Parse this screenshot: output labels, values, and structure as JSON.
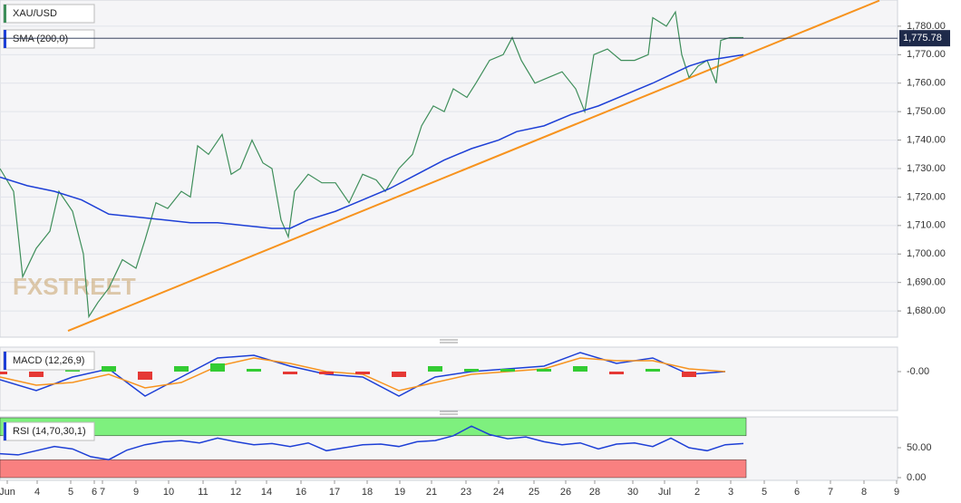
{
  "chart_data": [
    {
      "type": "line",
      "watermark": "FXSTREET",
      "grid": true,
      "xlim": [
        0,
        99
      ],
      "ylim": [
        1670.8,
        1789.2
      ],
      "yticks": [
        {
          "value": 1680,
          "label": "1,680.00"
        },
        {
          "value": 1690,
          "label": "1,690.00"
        },
        {
          "value": 1700,
          "label": "1,700.00"
        },
        {
          "value": 1710,
          "label": "1,710.00"
        },
        {
          "value": 1720,
          "label": "1,720.00"
        },
        {
          "value": 1730,
          "label": "1,730.00"
        },
        {
          "value": 1740,
          "label": "1,740.00"
        },
        {
          "value": 1750,
          "label": "1,750.00"
        },
        {
          "value": 1760,
          "label": "1,760.00"
        },
        {
          "value": 1770,
          "label": "1,770.00"
        },
        {
          "value": 1780,
          "label": "1,780.00"
        }
      ],
      "series": [
        {
          "name": "XAU/USD",
          "color": "#3e8e5a",
          "x": [
            0,
            1.5,
            2.5,
            4,
            5.5,
            6.5,
            8,
            9.2,
            9.8,
            10.8,
            12,
            13.5,
            15,
            16,
            17.2,
            18.5,
            20,
            21,
            21.8,
            23,
            24.5,
            25.5,
            26.5,
            27.8,
            29,
            30,
            31,
            31.8,
            32.5,
            34,
            35.5,
            37,
            38.5,
            40,
            41.5,
            42.5,
            44,
            45.5,
            46.5,
            47.8,
            49,
            50,
            51.5,
            52.5,
            54,
            55.5,
            56.5,
            57.5,
            59,
            60.5,
            62,
            63.5,
            64.5,
            65.5,
            67,
            68.5,
            70,
            71.5,
            72,
            73.5,
            74.5,
            75.2,
            76,
            77,
            78,
            79,
            79.5,
            80.5,
            82
          ],
          "values": [
            1730,
            1722,
            1692,
            1702,
            1708,
            1722,
            1715,
            1700,
            1678,
            1683,
            1688,
            1698,
            1695,
            1705,
            1718,
            1716,
            1722,
            1720,
            1738,
            1735,
            1742,
            1728,
            1730,
            1740,
            1732,
            1730,
            1712,
            1706,
            1722,
            1728,
            1725,
            1725,
            1718,
            1728,
            1726,
            1722,
            1730,
            1735,
            1745,
            1752,
            1750,
            1758,
            1755,
            1760,
            1768,
            1770,
            1776,
            1768,
            1760,
            1762,
            1764,
            1758,
            1750,
            1770,
            1772,
            1768,
            1768,
            1770,
            1783,
            1780,
            1785,
            1770,
            1762,
            1766,
            1768,
            1760,
            1775,
            1776,
            1776
          ]
        },
        {
          "name": "SMA (200,0)",
          "color": "#1d3fd6",
          "x": [
            0,
            3,
            6,
            9,
            12,
            15,
            18,
            21,
            24,
            27,
            30,
            32,
            34,
            37,
            40,
            43,
            46,
            49,
            52,
            55,
            57,
            60,
            63,
            66,
            69,
            72,
            74,
            76,
            78,
            80,
            82
          ],
          "values": [
            1727,
            1724,
            1722,
            1719,
            1714,
            1713,
            1712,
            1711,
            1711,
            1710,
            1709,
            1709,
            1712,
            1715,
            1719,
            1723,
            1728,
            1733,
            1737,
            1740,
            1743,
            1745,
            1749,
            1752,
            1756,
            1760,
            1763,
            1766,
            1768,
            1769,
            1770
          ]
        }
      ],
      "trendline": {
        "color": "#f7931e",
        "x": [
          7.5,
          97
        ],
        "values": [
          1673,
          1789
        ]
      },
      "last_price": {
        "value": 1775.78,
        "label": "1,775.78"
      }
    },
    {
      "type": "line",
      "xlim": [
        0,
        99
      ],
      "ylim": [
        -14,
        9
      ],
      "yticks": [
        {
          "value": 0,
          "label": "-0.00"
        }
      ],
      "series": [
        {
          "name": "MACD (12,26,9)",
          "color": "#1d3fd6",
          "x": [
            0,
            4,
            8,
            12,
            16,
            20,
            24,
            28,
            32,
            36,
            40,
            44,
            48,
            52,
            56,
            60,
            64,
            68,
            72,
            76,
            80
          ],
          "values": [
            -3,
            -7,
            -2,
            1,
            -9,
            -2,
            5,
            6,
            2,
            -1,
            -2,
            -9,
            -2,
            0,
            1,
            2,
            7,
            3,
            5,
            -1,
            0
          ]
        },
        {
          "color": "#f7931e",
          "x": [
            0,
            4,
            8,
            12,
            16,
            20,
            24,
            28,
            32,
            36,
            40,
            44,
            48,
            52,
            56,
            60,
            64,
            68,
            72,
            76,
            80
          ],
          "values": [
            -2,
            -5,
            -4,
            -1,
            -6,
            -4,
            2,
            5,
            3,
            0,
            -1,
            -7,
            -4,
            -1,
            0,
            1,
            5,
            4,
            4,
            1,
            0
          ]
        },
        {
          "kind": "bar",
          "color": "#33cc33",
          "negative_color": "#e53935",
          "x": [
            0,
            4,
            8,
            12,
            16,
            20,
            24,
            28,
            32,
            36,
            40,
            44,
            48,
            52,
            56,
            60,
            64,
            68,
            72,
            76,
            80
          ],
          "values": [
            -1,
            -2,
            2,
            2,
            -3,
            2,
            3,
            1,
            -1,
            -1,
            -1,
            -2,
            2,
            1,
            1,
            1,
            2,
            -1,
            1,
            -2,
            0
          ]
        }
      ]
    },
    {
      "type": "line",
      "xlim": [
        0,
        99
      ],
      "ylim": [
        0,
        100
      ],
      "yticks": [
        {
          "value": 50,
          "label": "50.00"
        },
        {
          "value": 0,
          "label": "0.00"
        }
      ],
      "bands": [
        {
          "from": 70,
          "to": 100,
          "color": "#7ef07e"
        },
        {
          "from": 0,
          "to": 30,
          "color": "#f98080"
        }
      ],
      "band_x": [
        0,
        82.3
      ],
      "xticks": [
        {
          "value": 0.8,
          "label": "Jun"
        },
        {
          "value": 4.1,
          "label": "4"
        },
        {
          "value": 7.8,
          "label": "5"
        },
        {
          "value": 10.4,
          "label": "6"
        },
        {
          "value": 11.3,
          "label": "7"
        },
        {
          "value": 15.0,
          "label": "9"
        },
        {
          "value": 18.6,
          "label": "10"
        },
        {
          "value": 22.4,
          "label": "11"
        },
        {
          "value": 26.0,
          "label": "12"
        },
        {
          "value": 29.4,
          "label": "14"
        },
        {
          "value": 33.2,
          "label": "16"
        },
        {
          "value": 36.9,
          "label": "17"
        },
        {
          "value": 40.5,
          "label": "18"
        },
        {
          "value": 44.1,
          "label": "19"
        },
        {
          "value": 47.6,
          "label": "21"
        },
        {
          "value": 51.4,
          "label": "23"
        },
        {
          "value": 55.0,
          "label": "24"
        },
        {
          "value": 58.9,
          "label": "25"
        },
        {
          "value": 62.4,
          "label": "26"
        },
        {
          "value": 65.6,
          "label": "28"
        },
        {
          "value": 69.8,
          "label": "30"
        },
        {
          "value": 73.3,
          "label": "Jul"
        },
        {
          "value": 76.9,
          "label": "2"
        },
        {
          "value": 80.6,
          "label": "3"
        },
        {
          "value": 84.3,
          "label": "5"
        },
        {
          "value": 87.9,
          "label": "6"
        },
        {
          "value": 91.6,
          "label": "7"
        },
        {
          "value": 95.3,
          "label": "8"
        },
        {
          "value": 98.9,
          "label": "9"
        }
      ],
      "series": [
        {
          "name": "RSI (14,70,30,1)",
          "color": "#1d3fd6",
          "x": [
            0,
            2,
            4,
            6,
            8,
            10,
            12,
            14,
            16,
            18,
            20,
            22,
            24,
            26,
            28,
            30,
            32,
            34,
            36,
            38,
            40,
            42,
            44,
            46,
            48,
            50,
            52,
            54,
            56,
            58,
            60,
            62,
            64,
            66,
            68,
            70,
            72,
            74,
            76,
            78,
            80,
            82
          ],
          "values": [
            40,
            38,
            45,
            52,
            48,
            35,
            30,
            46,
            55,
            60,
            62,
            58,
            66,
            60,
            55,
            57,
            52,
            58,
            45,
            50,
            55,
            56,
            52,
            60,
            62,
            70,
            86,
            72,
            65,
            68,
            60,
            55,
            58,
            48,
            56,
            58,
            52,
            66,
            50,
            45,
            55,
            57
          ]
        }
      ]
    }
  ]
}
